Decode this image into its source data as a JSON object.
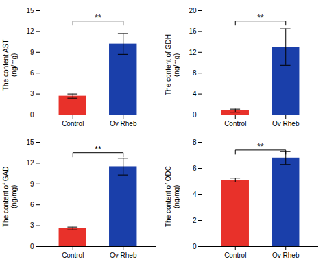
{
  "chart_data": [
    {
      "type": "bar",
      "ylabel": "The content AST\n(ng/mg)",
      "categories": [
        "Control",
        "Ov Rheb"
      ],
      "values": [
        2.7,
        10.2
      ],
      "errors": [
        0.3,
        1.5
      ],
      "colors": [
        "#e8312a",
        "#1a3faa"
      ],
      "ylim": [
        0,
        15
      ],
      "yticks": [
        0,
        3,
        6,
        9,
        12,
        15
      ],
      "grid": false,
      "annotations": [
        {
          "text": "**",
          "y": 13.5,
          "x": [
            "Control",
            "Ov Rheb"
          ]
        }
      ]
    },
    {
      "type": "bar",
      "ylabel": "The content of GDH\n(ng/mg)",
      "categories": [
        "Control",
        "Ov Rheb"
      ],
      "values": [
        0.8,
        13.0
      ],
      "errors": [
        0.3,
        3.5
      ],
      "colors": [
        "#e8312a",
        "#1a3faa"
      ],
      "ylim": [
        0,
        20
      ],
      "yticks": [
        0,
        4,
        8,
        12,
        16,
        20
      ],
      "grid": false,
      "annotations": [
        {
          "text": "**",
          "y": 18.0,
          "x": [
            "Control",
            "Ov Rheb"
          ]
        }
      ]
    },
    {
      "type": "bar",
      "ylabel": "The content of GAD\n(ng/mg)",
      "categories": [
        "Control",
        "Ov Rheb"
      ],
      "values": [
        2.6,
        11.5
      ],
      "errors": [
        0.2,
        1.2
      ],
      "colors": [
        "#e8312a",
        "#1a3faa"
      ],
      "ylim": [
        0,
        15
      ],
      "yticks": [
        0,
        3,
        6,
        9,
        12,
        15
      ],
      "grid": false,
      "annotations": [
        {
          "text": "**",
          "y": 13.5,
          "x": [
            "Control",
            "Ov Rheb"
          ]
        }
      ]
    },
    {
      "type": "bar",
      "ylabel": "The content of ODC\n(ng/mg)",
      "categories": [
        "Control",
        "Ov Rheb"
      ],
      "values": [
        5.1,
        6.8
      ],
      "errors": [
        0.15,
        0.5
      ],
      "colors": [
        "#e8312a",
        "#1a3faa"
      ],
      "ylim": [
        0,
        8
      ],
      "yticks": [
        0,
        2,
        4,
        6,
        8
      ],
      "grid": false,
      "annotations": [
        {
          "text": "**",
          "y": 7.4,
          "x": [
            "Control",
            "Ov Rheb"
          ]
        }
      ]
    }
  ]
}
